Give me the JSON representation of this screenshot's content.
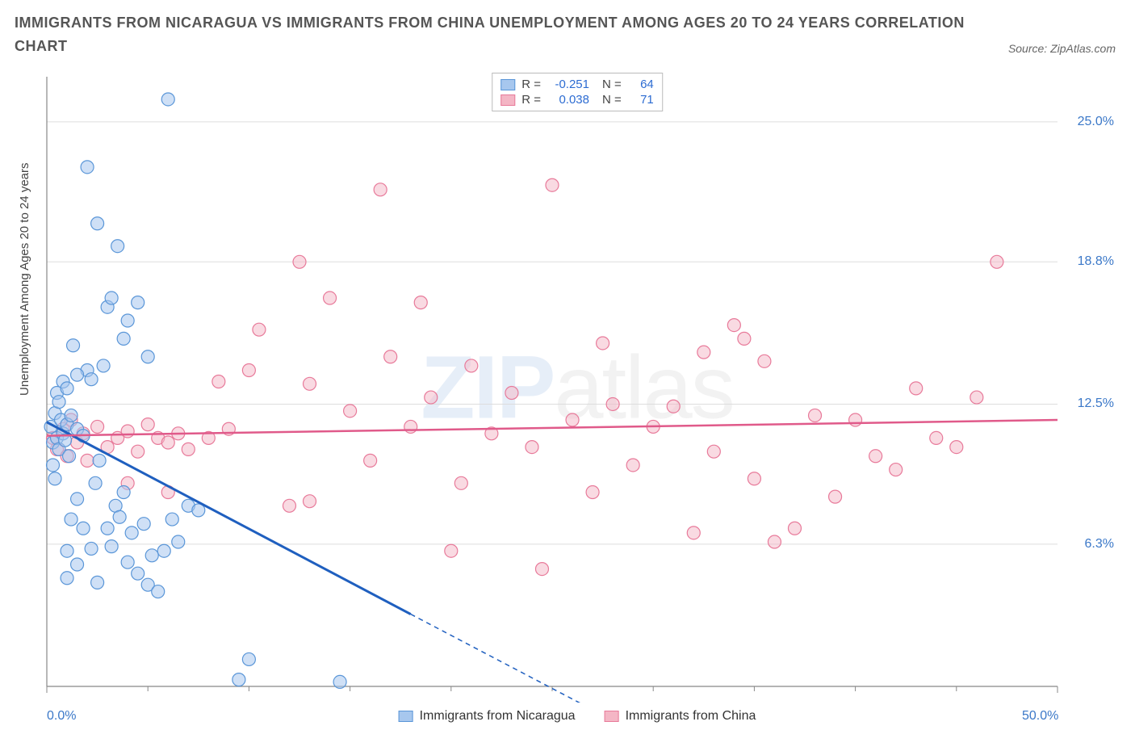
{
  "title": "IMMIGRANTS FROM NICARAGUA VS IMMIGRANTS FROM CHINA UNEMPLOYMENT AMONG AGES 20 TO 24 YEARS CORRELATION CHART",
  "source": "Source: ZipAtlas.com",
  "watermark_bold": "ZIP",
  "watermark_thin": "atlas",
  "ylabel": "Unemployment Among Ages 20 to 24 years",
  "chart": {
    "type": "scatter",
    "xlim": [
      0,
      50
    ],
    "ylim": [
      0,
      27
    ],
    "xticks": [
      0,
      50
    ],
    "xtick_labels": [
      "0.0%",
      "50.0%"
    ],
    "xtick_minor": [
      5,
      10,
      15,
      20,
      25,
      30,
      35,
      40,
      45
    ],
    "yticks": [
      6.3,
      12.5,
      18.8,
      25.0
    ],
    "ytick_labels": [
      "6.3%",
      "12.5%",
      "18.8%",
      "25.0%"
    ],
    "grid_color": "#dddddd",
    "axis_color": "#888888",
    "background": "#ffffff",
    "series": [
      {
        "name": "Immigrants from Nicaragua",
        "key": "nicaragua",
        "fill": "#a7c7ee",
        "fill_opacity": 0.55,
        "stroke": "#5a96d8",
        "marker_r": 8,
        "trend_color": "#1f5fbf",
        "trend_width": 3,
        "trend": {
          "x1": 0,
          "y1": 11.7,
          "x2": 18,
          "y2": 3.2,
          "dash_from_x": 18,
          "dash_to_x": 28,
          "dash_to_y": -1.5
        },
        "R": "-0.251",
        "N": "64",
        "points": [
          [
            0.2,
            11.5
          ],
          [
            0.3,
            10.8
          ],
          [
            0.4,
            12.1
          ],
          [
            0.5,
            11.0
          ],
          [
            0.6,
            10.5
          ],
          [
            0.7,
            11.8
          ],
          [
            0.8,
            11.2
          ],
          [
            0.9,
            10.9
          ],
          [
            1.0,
            11.6
          ],
          [
            1.1,
            10.2
          ],
          [
            0.3,
            9.8
          ],
          [
            0.4,
            9.2
          ],
          [
            0.5,
            13.0
          ],
          [
            0.6,
            12.6
          ],
          [
            0.8,
            13.5
          ],
          [
            1.2,
            12.0
          ],
          [
            1.3,
            15.1
          ],
          [
            1.5,
            11.4
          ],
          [
            1.8,
            11.1
          ],
          [
            2.0,
            14.0
          ],
          [
            2.2,
            13.6
          ],
          [
            2.4,
            9.0
          ],
          [
            2.6,
            10.0
          ],
          [
            2.8,
            14.2
          ],
          [
            3.0,
            7.0
          ],
          [
            3.2,
            6.2
          ],
          [
            3.4,
            8.0
          ],
          [
            3.6,
            7.5
          ],
          [
            3.8,
            8.6
          ],
          [
            4.0,
            5.5
          ],
          [
            4.2,
            6.8
          ],
          [
            4.5,
            5.0
          ],
          [
            4.8,
            7.2
          ],
          [
            5.0,
            4.5
          ],
          [
            5.2,
            5.8
          ],
          [
            5.5,
            4.2
          ],
          [
            5.8,
            6.0
          ],
          [
            2.0,
            23.0
          ],
          [
            2.5,
            20.5
          ],
          [
            3.0,
            16.8
          ],
          [
            3.2,
            17.2
          ],
          [
            3.5,
            19.5
          ],
          [
            6.0,
            26.0
          ],
          [
            6.2,
            7.4
          ],
          [
            6.5,
            6.4
          ],
          [
            7.0,
            8.0
          ],
          [
            7.5,
            7.8
          ],
          [
            1.0,
            6.0
          ],
          [
            1.2,
            7.4
          ],
          [
            1.5,
            8.3
          ],
          [
            1.8,
            7.0
          ],
          [
            2.2,
            6.1
          ],
          [
            2.5,
            4.6
          ],
          [
            1.0,
            13.2
          ],
          [
            1.5,
            13.8
          ],
          [
            3.8,
            15.4
          ],
          [
            4.0,
            16.2
          ],
          [
            4.5,
            17.0
          ],
          [
            5.0,
            14.6
          ],
          [
            9.5,
            0.3
          ],
          [
            10.0,
            1.2
          ],
          [
            14.5,
            0.2
          ],
          [
            1.0,
            4.8
          ],
          [
            1.5,
            5.4
          ]
        ]
      },
      {
        "name": "Immigrants from China",
        "key": "china",
        "fill": "#f4b6c5",
        "fill_opacity": 0.5,
        "stroke": "#e87a9a",
        "marker_r": 8,
        "trend_color": "#e05a8a",
        "trend_width": 2.5,
        "trend": {
          "x1": 0,
          "y1": 11.1,
          "x2": 50,
          "y2": 11.8
        },
        "R": "0.038",
        "N": "71",
        "points": [
          [
            0.3,
            11.0
          ],
          [
            0.5,
            10.5
          ],
          [
            0.8,
            11.4
          ],
          [
            1.0,
            10.2
          ],
          [
            1.2,
            11.8
          ],
          [
            1.5,
            10.8
          ],
          [
            1.8,
            11.2
          ],
          [
            2.0,
            10.0
          ],
          [
            2.5,
            11.5
          ],
          [
            3.0,
            10.6
          ],
          [
            3.5,
            11.0
          ],
          [
            4.0,
            11.3
          ],
          [
            4.5,
            10.4
          ],
          [
            5.0,
            11.6
          ],
          [
            5.5,
            11.0
          ],
          [
            6.0,
            10.8
          ],
          [
            6.5,
            11.2
          ],
          [
            7.0,
            10.5
          ],
          [
            8.0,
            11.0
          ],
          [
            8.5,
            13.5
          ],
          [
            9.0,
            11.4
          ],
          [
            10.0,
            14.0
          ],
          [
            10.5,
            15.8
          ],
          [
            12.0,
            8.0
          ],
          [
            12.5,
            18.8
          ],
          [
            13.0,
            8.2
          ],
          [
            14.0,
            17.2
          ],
          [
            15.0,
            12.2
          ],
          [
            16.0,
            10.0
          ],
          [
            16.5,
            22.0
          ],
          [
            17.0,
            14.6
          ],
          [
            18.0,
            11.5
          ],
          [
            19.0,
            12.8
          ],
          [
            20.0,
            6.0
          ],
          [
            20.5,
            9.0
          ],
          [
            22.0,
            11.2
          ],
          [
            23.0,
            13.0
          ],
          [
            24.0,
            10.6
          ],
          [
            24.5,
            5.2
          ],
          [
            25.0,
            22.2
          ],
          [
            26.0,
            11.8
          ],
          [
            27.0,
            8.6
          ],
          [
            27.5,
            15.2
          ],
          [
            28.0,
            12.5
          ],
          [
            29.0,
            9.8
          ],
          [
            30.0,
            11.5
          ],
          [
            31.0,
            12.4
          ],
          [
            32.0,
            6.8
          ],
          [
            32.5,
            14.8
          ],
          [
            33.0,
            10.4
          ],
          [
            34.0,
            16.0
          ],
          [
            34.5,
            15.4
          ],
          [
            35.0,
            9.2
          ],
          [
            35.5,
            14.4
          ],
          [
            36.0,
            6.4
          ],
          [
            37.0,
            7.0
          ],
          [
            38.0,
            12.0
          ],
          [
            39.0,
            8.4
          ],
          [
            40.0,
            11.8
          ],
          [
            41.0,
            10.2
          ],
          [
            42.0,
            9.6
          ],
          [
            43.0,
            13.2
          ],
          [
            44.0,
            11.0
          ],
          [
            45.0,
            10.6
          ],
          [
            46.0,
            12.8
          ],
          [
            47.0,
            18.8
          ],
          [
            13.0,
            13.4
          ],
          [
            18.5,
            17.0
          ],
          [
            21.0,
            14.2
          ],
          [
            6.0,
            8.6
          ],
          [
            4.0,
            9.0
          ]
        ]
      }
    ]
  },
  "legend_top": {
    "r_label": "R =",
    "n_label": "N ="
  },
  "bottom_legend": {
    "nicaragua": "Immigrants from Nicaragua",
    "china": "Immigrants from China"
  }
}
